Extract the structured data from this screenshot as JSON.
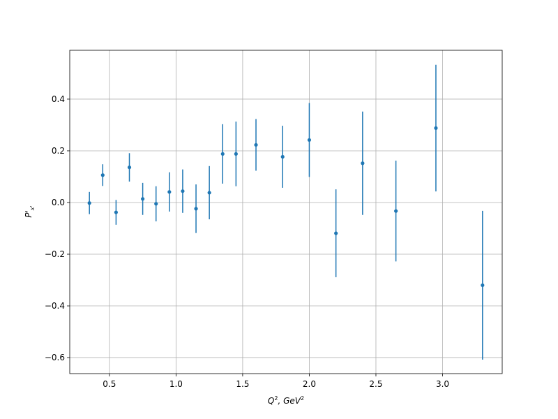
{
  "chart_data": {
    "type": "errorbar",
    "xlabel": {
      "base": "Q",
      "sup": "2",
      "rest": ", GeV",
      "sup2": "2"
    },
    "ylabel": {
      "base": "P'",
      "sub": "x'"
    },
    "x": [
      0.35,
      0.45,
      0.55,
      0.65,
      0.75,
      0.85,
      0.95,
      1.05,
      1.15,
      1.25,
      1.35,
      1.45,
      1.6,
      1.8,
      2.0,
      2.2,
      2.4,
      2.65,
      2.95,
      3.3
    ],
    "values": [
      -0.002,
      0.106,
      -0.038,
      0.136,
      0.014,
      -0.005,
      0.041,
      0.044,
      -0.024,
      0.038,
      0.188,
      0.188,
      0.223,
      0.177,
      0.242,
      -0.119,
      0.152,
      -0.033,
      0.288,
      -0.32
    ],
    "errors": [
      0.043,
      0.042,
      0.048,
      0.055,
      0.062,
      0.068,
      0.076,
      0.084,
      0.094,
      0.103,
      0.115,
      0.125,
      0.1,
      0.12,
      0.143,
      0.17,
      0.2,
      0.195,
      0.245,
      0.288
    ],
    "color": "#1f77b4",
    "xlim": [
      0.2025,
      3.4475
    ],
    "ylim": [
      -0.662,
      0.589
    ],
    "xticks": [
      0.5,
      {
        "value": 1.0,
        "label": "1.0"
      },
      1.5,
      {
        "value": 2.0,
        "label": "2.0"
      },
      2.5,
      {
        "value": 3.0,
        "label": "3.0"
      }
    ],
    "yticks": [
      {
        "value": -0.6,
        "label": "−0.6"
      },
      {
        "value": -0.4,
        "label": "−0.4"
      },
      {
        "value": -0.2,
        "label": "−0.2"
      },
      {
        "value": 0.0,
        "label": "0.0"
      },
      0.2,
      0.4
    ],
    "grid": true
  }
}
